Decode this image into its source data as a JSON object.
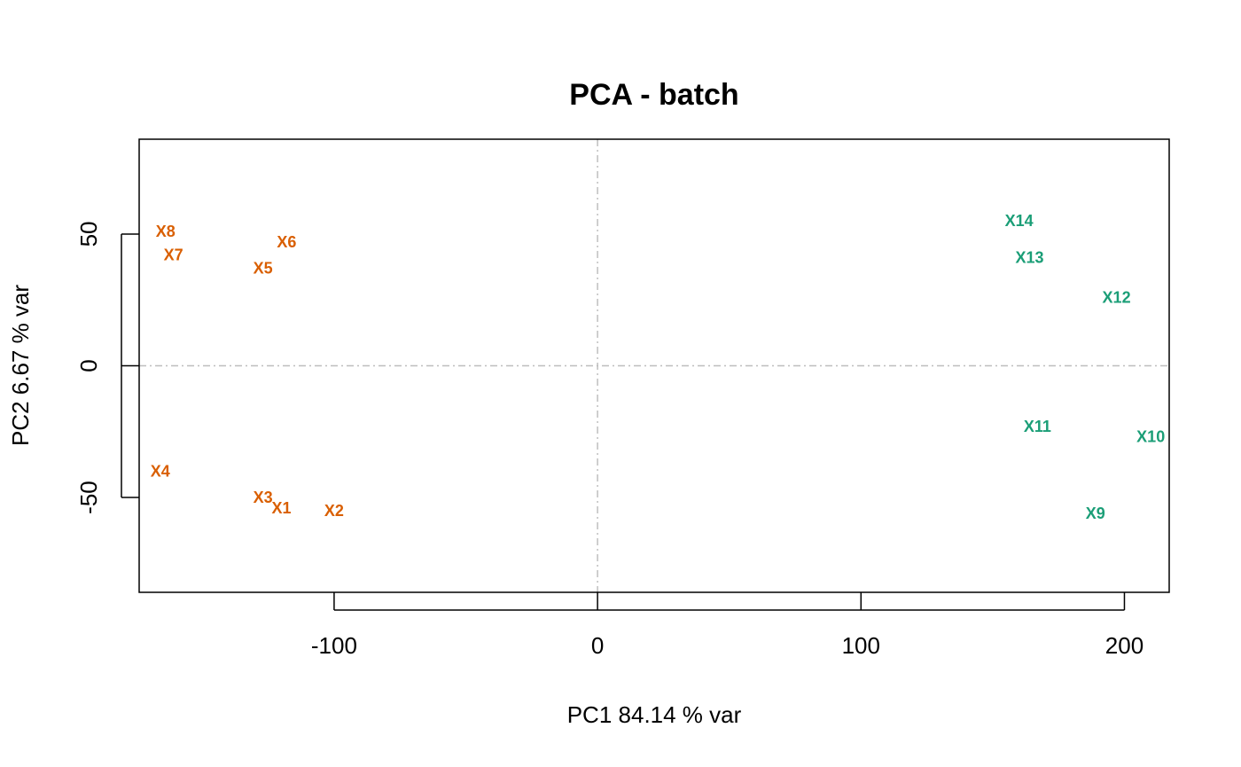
{
  "chart_data": {
    "type": "scatter",
    "title": "PCA - batch",
    "xlabel": "PC1   84.14 % var",
    "ylabel": "PC2   6.67 % var",
    "xlim": [
      -174,
      217
    ],
    "ylim": [
      -86,
      86
    ],
    "xticks": [
      -100,
      0,
      100,
      200
    ],
    "yticks": [
      -50,
      0,
      50
    ],
    "xtick_labels": [
      "-100",
      "0",
      "100",
      "200"
    ],
    "ytick_labels": [
      "-50",
      "0",
      "50"
    ],
    "reference_lines": {
      "x": 0,
      "y": 0,
      "style": "dashed",
      "color": "#bebebe"
    },
    "grid": false,
    "series": [
      {
        "color": "#d95f02",
        "points": [
          {
            "label": "X1",
            "x": -120,
            "y": -54
          },
          {
            "label": "X2",
            "x": -100,
            "y": -55
          },
          {
            "label": "X3",
            "x": -127,
            "y": -50
          },
          {
            "label": "X4",
            "x": -166,
            "y": -40
          },
          {
            "label": "X5",
            "x": -127,
            "y": 37
          },
          {
            "label": "X6",
            "x": -118,
            "y": 47
          },
          {
            "label": "X7",
            "x": -161,
            "y": 42
          },
          {
            "label": "X8",
            "x": -164,
            "y": 51
          }
        ]
      },
      {
        "color": "#1b9e77",
        "points": [
          {
            "label": "X9",
            "x": 189,
            "y": -56
          },
          {
            "label": "X10",
            "x": 210,
            "y": -27
          },
          {
            "label": "X11",
            "x": 167,
            "y": -23
          },
          {
            "label": "X12",
            "x": 197,
            "y": 26
          },
          {
            "label": "X13",
            "x": 164,
            "y": 41
          },
          {
            "label": "X14",
            "x": 160,
            "y": 55
          }
        ]
      }
    ]
  }
}
